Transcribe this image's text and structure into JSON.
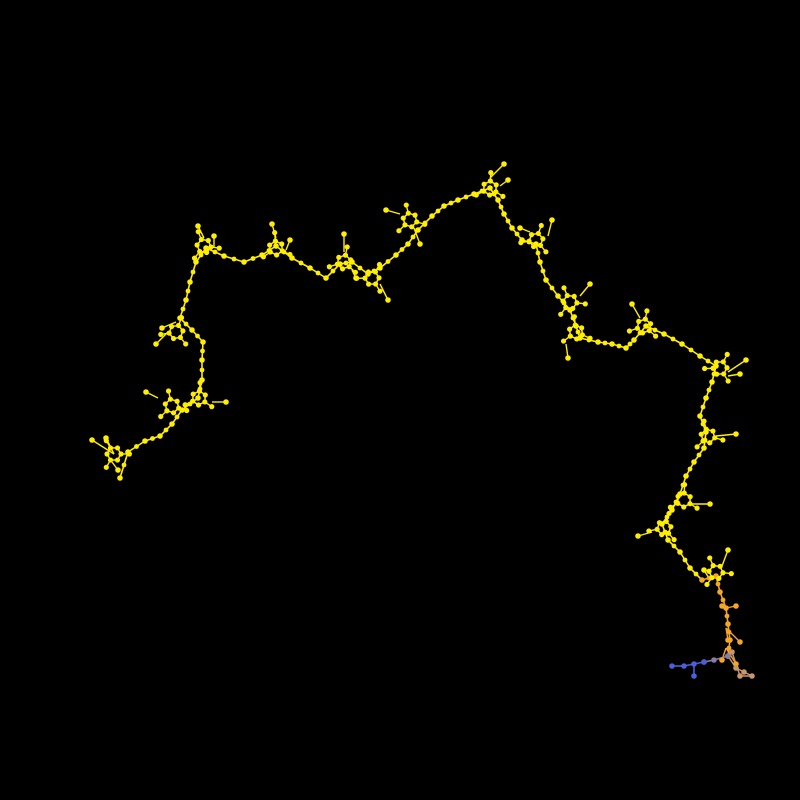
{
  "colors": {
    "background": "#000000",
    "chain": "#ffee00",
    "chain_stroke": "#ffe600",
    "tail_orange": "#f5a623",
    "tail_tan": "#c9956b",
    "tail_blue": "#4a5fd8",
    "tail_grey": "#8a7aa8"
  },
  "legend": []
}
